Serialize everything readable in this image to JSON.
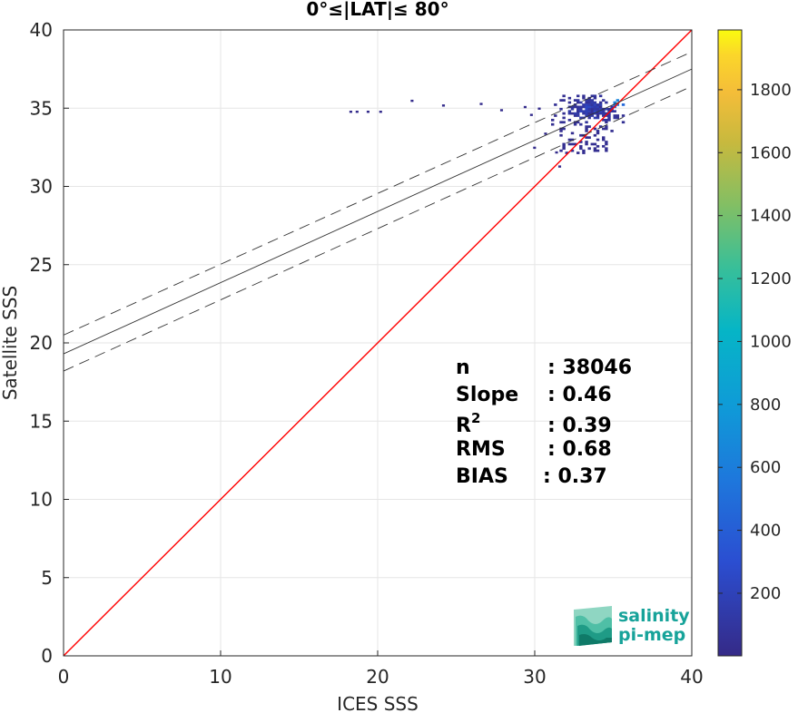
{
  "chart_data": {
    "type": "heatmap",
    "title": "0°≤|LAT|≤ 80°",
    "xlabel": "ICES SSS",
    "ylabel": "Satellite SSS",
    "xlim": [
      0,
      40
    ],
    "ylim": [
      0,
      40
    ],
    "xticks": [
      "0",
      "10",
      "20",
      "30",
      "40"
    ],
    "yticks": [
      "0",
      "5",
      "10",
      "15",
      "20",
      "25",
      "30",
      "35",
      "40"
    ],
    "grid": true,
    "colorbar": {
      "min": 1,
      "max": 1990,
      "ticks": [
        "200",
        "400",
        "600",
        "800",
        "1000",
        "1200",
        "1400",
        "1600",
        "1800"
      ],
      "colormap": "parula"
    },
    "lines": [
      {
        "kind": "identity",
        "x": [
          0,
          40
        ],
        "y": [
          0,
          40
        ],
        "color": "#ff0000",
        "style": "solid"
      },
      {
        "kind": "regression",
        "x": [
          0,
          40
        ],
        "y": [
          19.3,
          37.5
        ],
        "color": "#333333",
        "style": "solid"
      },
      {
        "kind": "regression-upper",
        "x": [
          0,
          40
        ],
        "y": [
          20.5,
          38.6
        ],
        "color": "#333333",
        "style": "dashed"
      },
      {
        "kind": "regression-lower",
        "x": [
          0,
          40
        ],
        "y": [
          18.2,
          36.4
        ],
        "color": "#333333",
        "style": "dashed"
      }
    ],
    "stats": [
      {
        "label": "n",
        "value": ": 38046"
      },
      {
        "label": "Slope",
        "value": ": 0.46"
      },
      {
        "label": "R",
        "sup": "2",
        "value": ": 0.39"
      },
      {
        "label": "RMS",
        "value": ": 0.68"
      },
      {
        "label": "BIAS",
        "value": ": 0.37"
      }
    ],
    "sparse_points": [
      [
        18.2,
        34.7
      ],
      [
        18.6,
        34.7
      ],
      [
        19.3,
        34.7
      ],
      [
        20.1,
        34.7
      ],
      [
        22.1,
        35.4
      ],
      [
        24.1,
        35.1
      ],
      [
        26.5,
        35.2
      ],
      [
        27.8,
        34.8
      ],
      [
        29.3,
        35.0
      ],
      [
        29.7,
        34.5
      ],
      [
        30.2,
        34.9
      ],
      [
        30.6,
        33.3
      ],
      [
        29.9,
        32.4
      ],
      [
        31.5,
        31.2
      ],
      [
        31.3,
        32.1
      ]
    ],
    "dense_cluster": {
      "x_range": [
        30.5,
        35.6
      ],
      "y_range": [
        31.8,
        35.8
      ],
      "peak": [
        35.2,
        35.3
      ]
    }
  },
  "logo": {
    "line1": "salinity",
    "line2": "pi-mep"
  }
}
